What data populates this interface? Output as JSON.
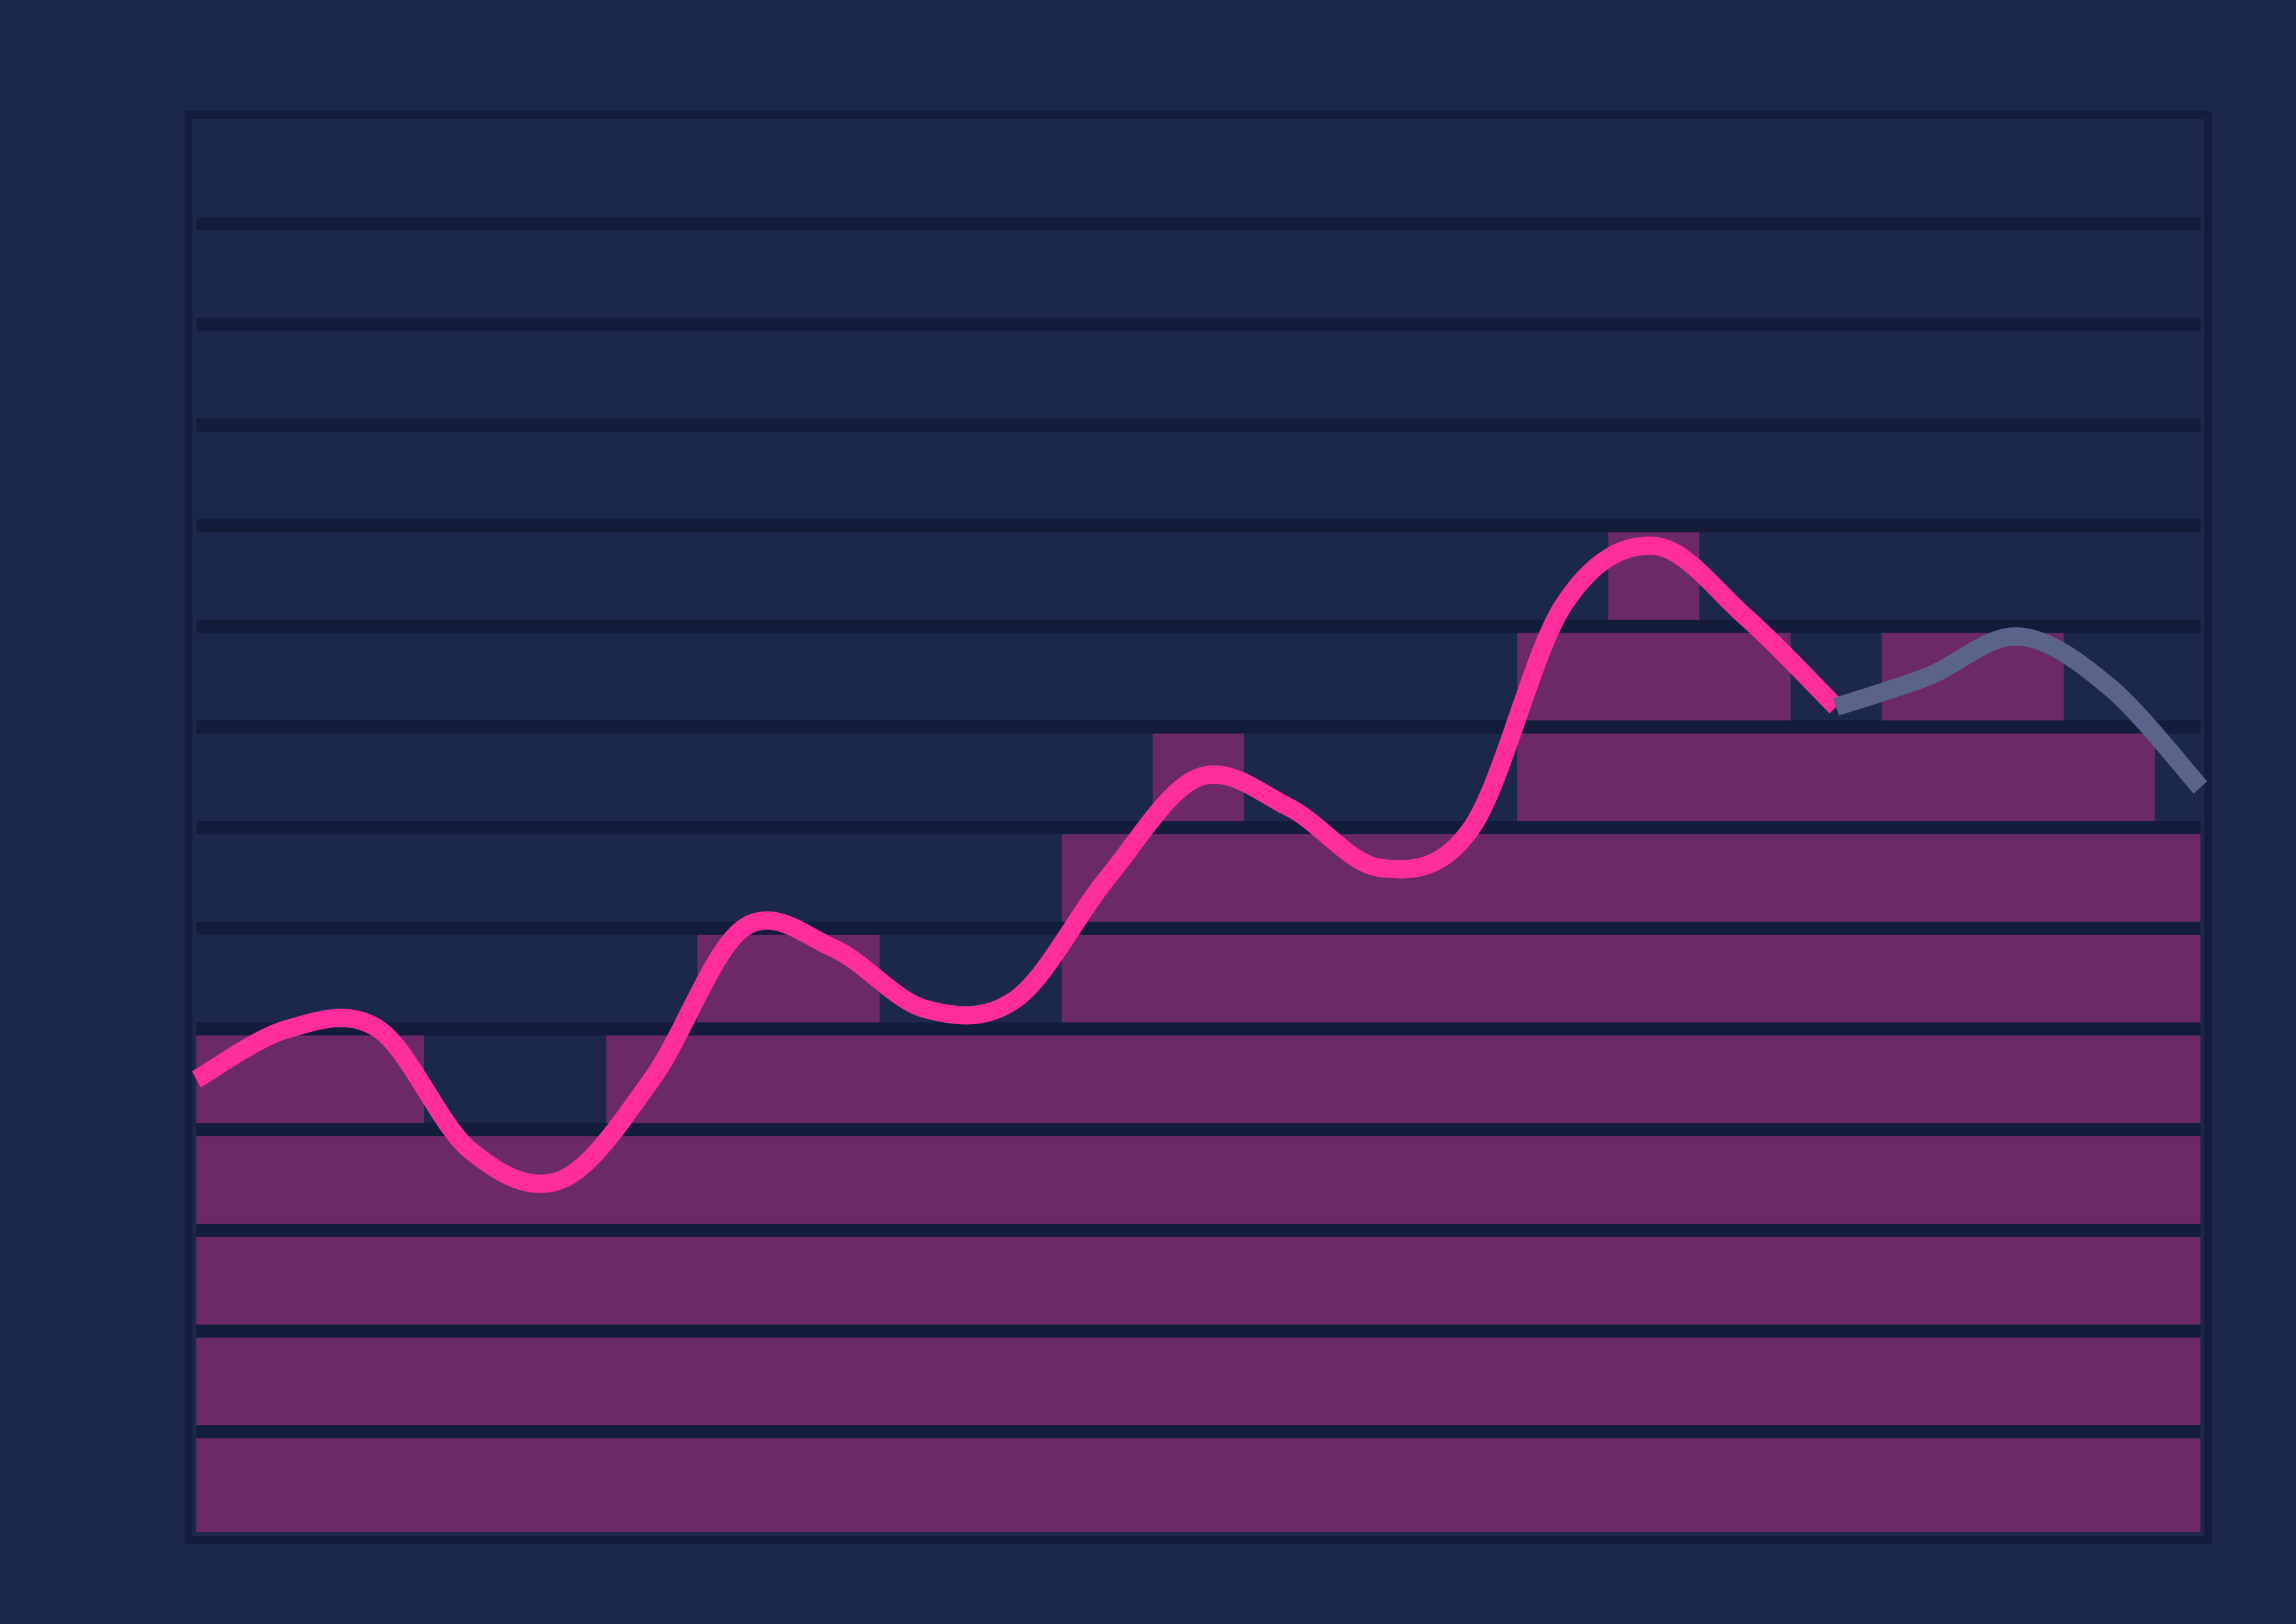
{
  "chart_data": {
    "type": "area",
    "title": "",
    "xlabel": "",
    "ylabel": "",
    "x": [
      0,
      1,
      2,
      3,
      4,
      5,
      6,
      7,
      8,
      9,
      10,
      11,
      12,
      13,
      14,
      15,
      16,
      17,
      18,
      19,
      20,
      21,
      22
    ],
    "xlim": [
      0,
      22
    ],
    "ylim": [
      0,
      14
    ],
    "grid": true,
    "legend": "none",
    "series": [
      {
        "role": "actual",
        "x": [
          0,
          1,
          2,
          3,
          4,
          5,
          6,
          7,
          8,
          9,
          10,
          11,
          12,
          13,
          14,
          15,
          16,
          17,
          18
        ],
        "values": [
          4.5,
          5.0,
          5.0,
          3.8,
          3.5,
          4.5,
          6.0,
          5.8,
          5.2,
          5.3,
          6.5,
          7.5,
          7.2,
          6.6,
          7.0,
          9.2,
          9.8,
          9.1,
          8.2
        ],
        "color": "#ff2d9e",
        "fill": "#6b2967"
      },
      {
        "role": "projected",
        "x": [
          18,
          19,
          20,
          21,
          22
        ],
        "values": [
          8.2,
          8.5,
          8.9,
          8.4,
          7.4
        ],
        "color": "#5a6389",
        "fill": "#6b2967"
      }
    ],
    "colors": {
      "background": "#1b274b",
      "gridline": "#131c3b",
      "band": "#1b274b"
    }
  }
}
